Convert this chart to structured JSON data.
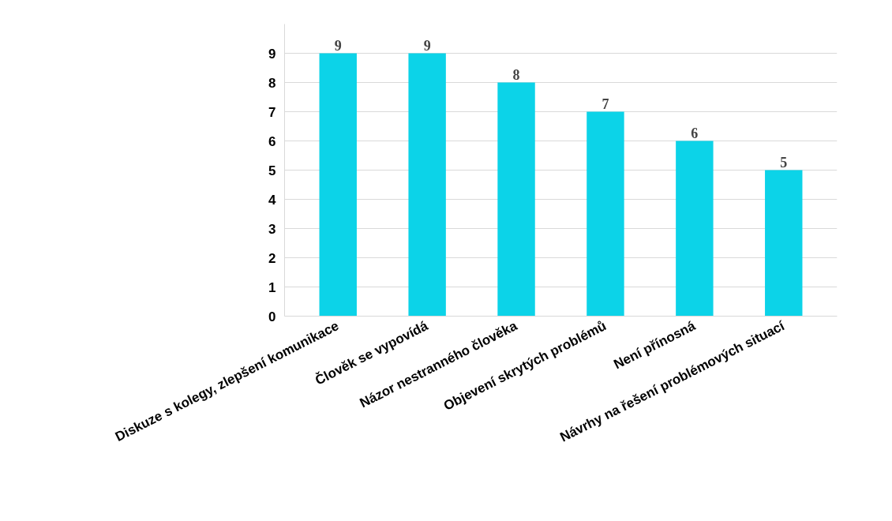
{
  "chart_data": {
    "type": "bar",
    "categories": [
      "Diskuze s kolegy, zlepšení komunikace",
      "Člověk se vypovídá",
      "Názor nestranného člověka",
      "Objevení skrytých problémů",
      "Není přínosná",
      "Návrhy na řešení problémových situací"
    ],
    "values": [
      9,
      9,
      8,
      7,
      6,
      5
    ],
    "color": "#0cd3e8",
    "ylim": [
      0,
      10
    ],
    "yticks": [
      0,
      1,
      2,
      3,
      4,
      5,
      6,
      7,
      8,
      9
    ],
    "grid": "y",
    "data_labels": true
  }
}
